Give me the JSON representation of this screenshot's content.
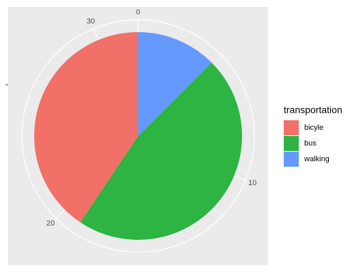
{
  "chart_data": {
    "type": "pie",
    "categories": [
      "bicyle",
      "bus",
      "walking"
    ],
    "values": [
      13,
      15,
      4
    ],
    "colors": [
      "#f17067",
      "#2db443",
      "#6699fe"
    ],
    "ylim": [
      0,
      32
    ],
    "yticks": [
      0,
      10,
      20,
      30
    ],
    "legend_title": "transportation",
    "legend": "right"
  }
}
